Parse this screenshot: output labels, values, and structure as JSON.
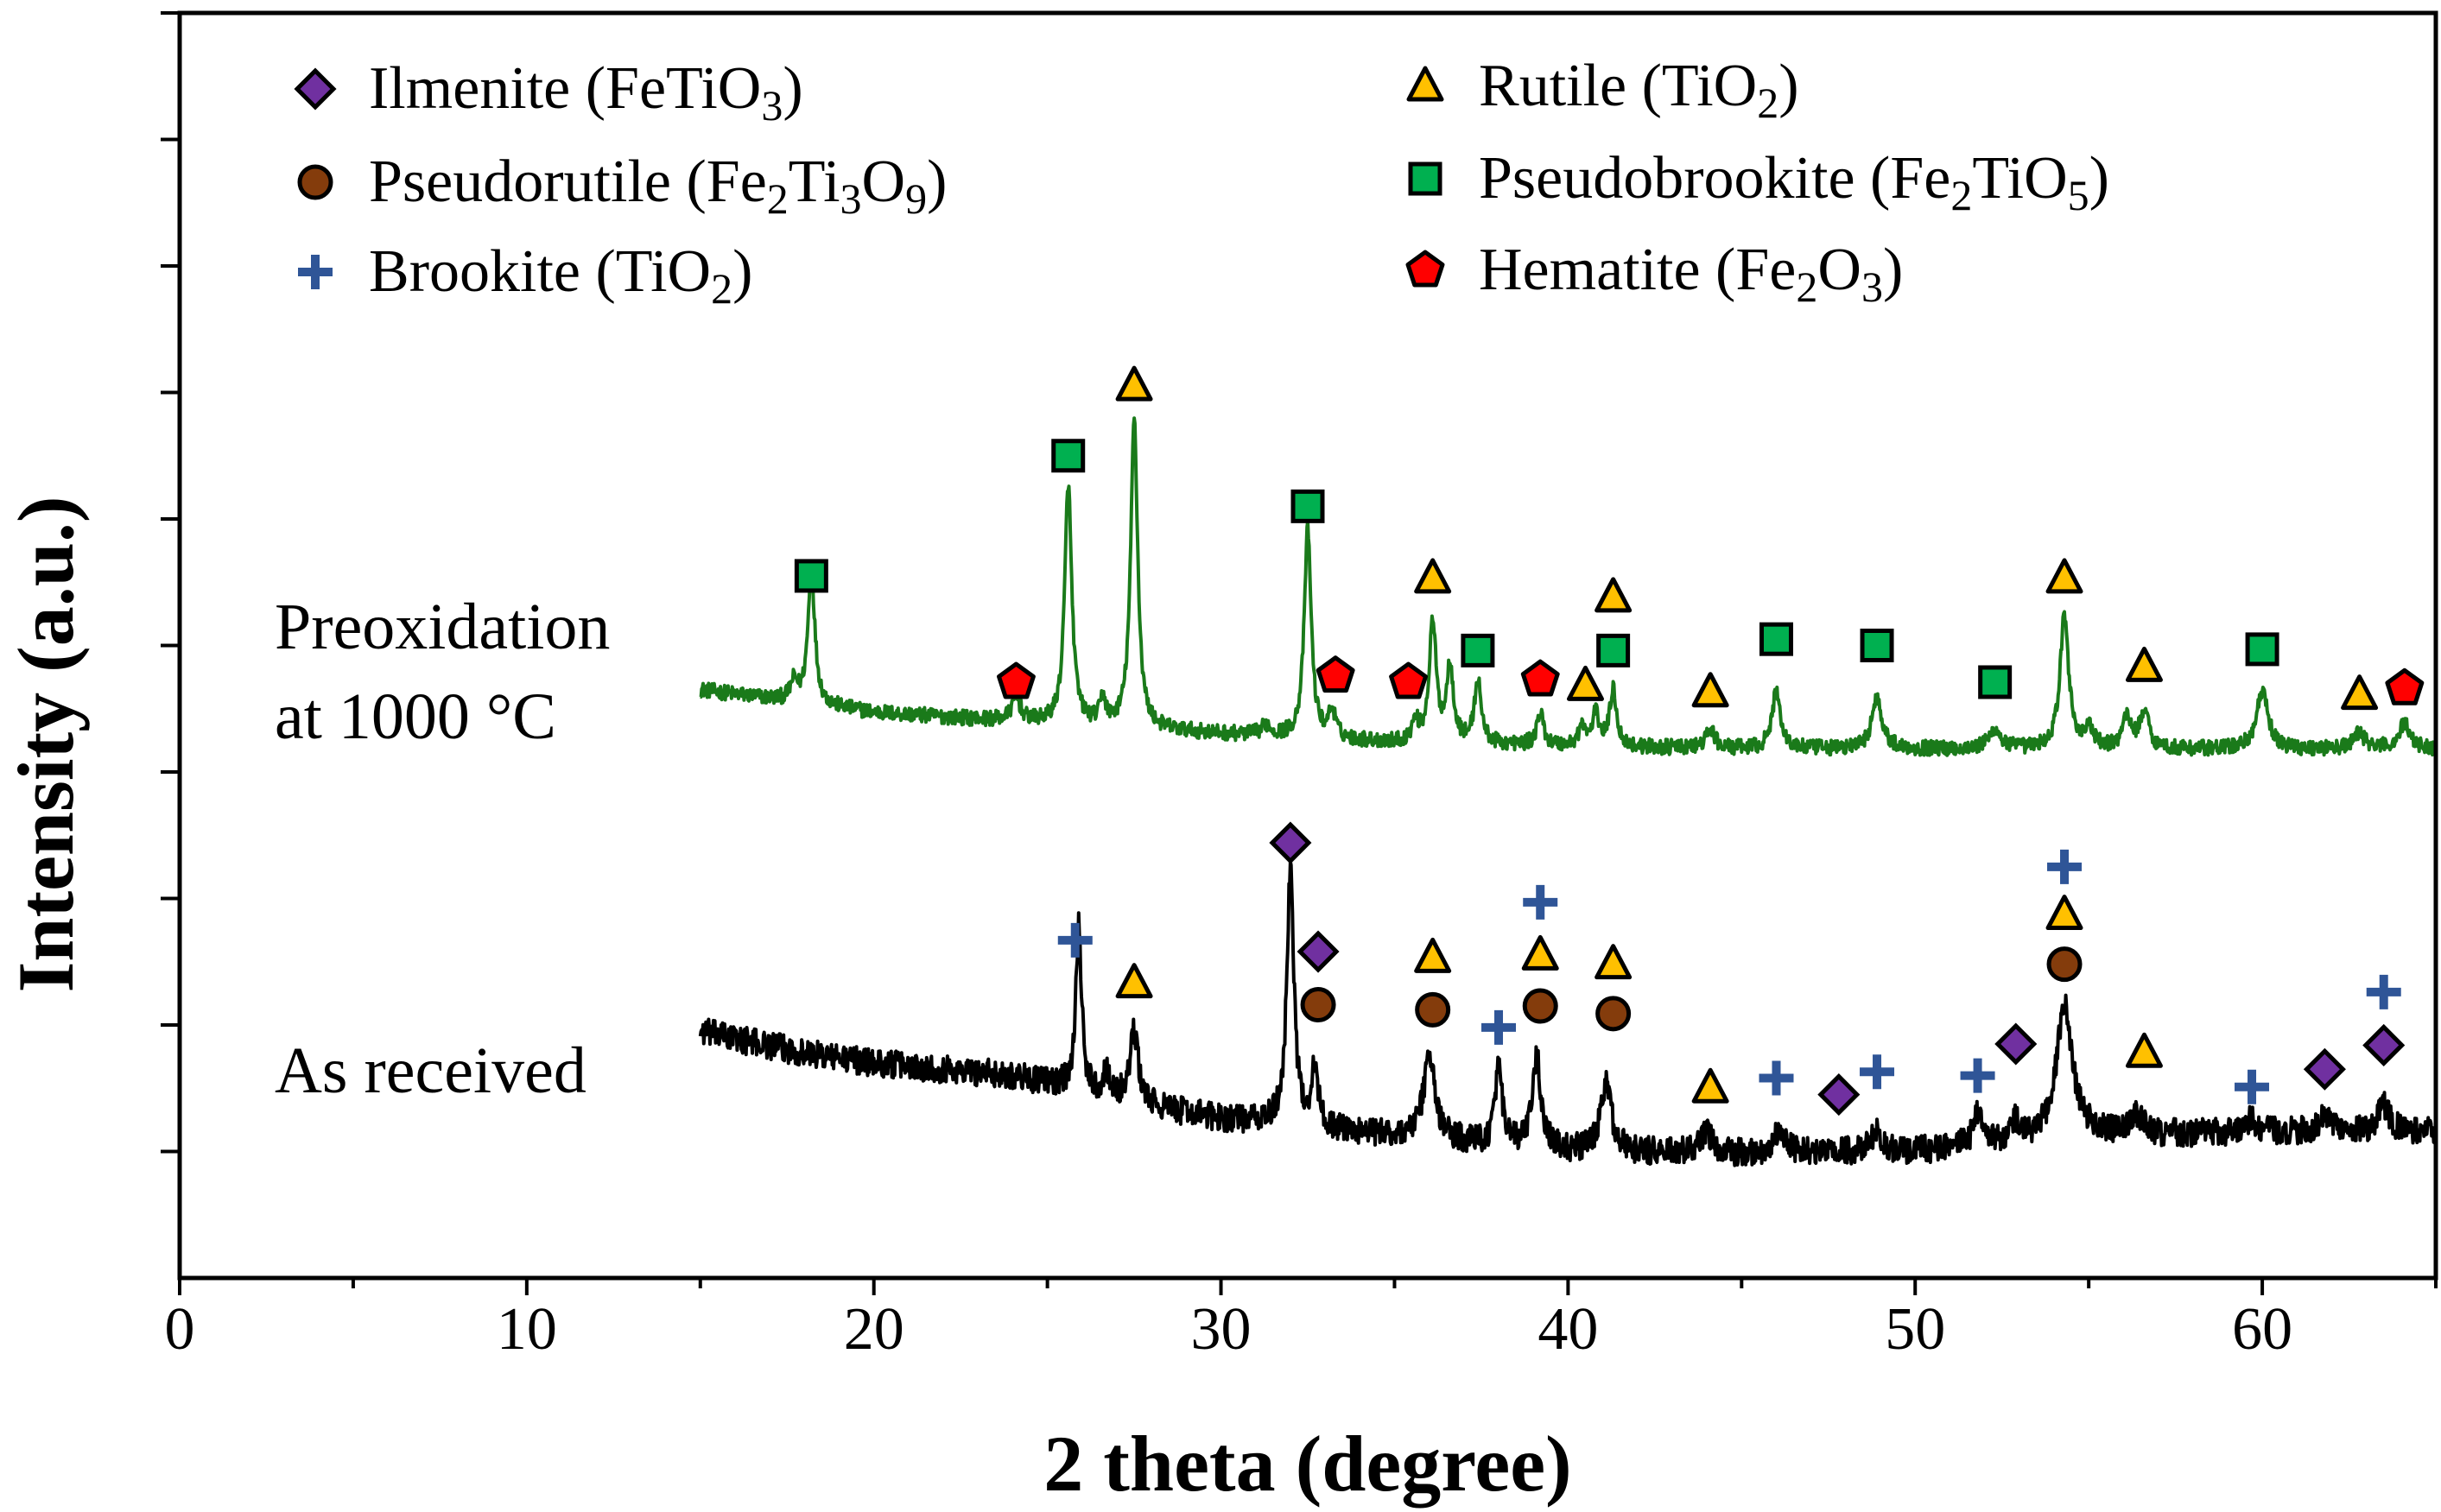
{
  "chart_data": {
    "type": "line",
    "title": "",
    "xlabel": "2 theta (degree)",
    "ylabel": "Intensity (a.u.)",
    "xlim": [
      0,
      65
    ],
    "ylim": [
      0,
      1
    ],
    "xticks": [
      0,
      10,
      20,
      30,
      40,
      50,
      60
    ],
    "xtick_labels": [
      "0",
      "10",
      "20",
      "30",
      "40",
      "50",
      "60"
    ],
    "ytick_count": 10,
    "grid": false,
    "legend_position": "top",
    "legend": [
      {
        "key": "ilmenite",
        "marker": "diamond",
        "color": "#7030a0",
        "name": "Ilmenite (FeTiO",
        "sub": "3",
        "tail": ")"
      },
      {
        "key": "rutile",
        "marker": "triangle",
        "color": "#ffc000",
        "name": "Rutile (TiO",
        "sub": "2",
        "tail": ")"
      },
      {
        "key": "pseudorutile",
        "marker": "circle",
        "color": "#843c0c",
        "name": "Pseudorutile (Fe",
        "sub": "2",
        "mid": "Ti",
        "sub2": "3",
        "mid2": "O",
        "sub3": "9",
        "tail": ")"
      },
      {
        "key": "pseudobrookite",
        "marker": "square",
        "color": "#00b050",
        "name": "Pseudobrookite (Fe",
        "sub": "2",
        "mid": "TiO",
        "sub2": "5",
        "tail": ")"
      },
      {
        "key": "brookite",
        "marker": "plus",
        "color": "#2f5597",
        "name": "Brookite (TiO",
        "sub": "2",
        "tail": ")"
      },
      {
        "key": "hematite",
        "marker": "pentagon",
        "color": "#ff0000",
        "name": "Hematite (Fe",
        "sub": "2",
        "mid": "O",
        "sub2": "3",
        "tail": ")"
      }
    ],
    "series": [
      {
        "name": "Preoxidation at 1000 °C",
        "label_lines": [
          "Preoxidation",
          "at 1000 °C"
        ],
        "color": "#1a7a1a",
        "x_range": [
          15,
          65
        ],
        "baseline": [
          [
            15,
            0.465
          ],
          [
            20,
            0.447
          ],
          [
            25,
            0.438
          ],
          [
            30,
            0.43
          ],
          [
            35,
            0.423
          ],
          [
            40,
            0.42
          ],
          [
            45,
            0.418
          ],
          [
            50,
            0.418
          ],
          [
            55,
            0.418
          ],
          [
            60,
            0.418
          ],
          [
            65,
            0.418
          ]
        ],
        "peaks": [
          [
            17.7,
            0.015,
            0.12
          ],
          [
            18.2,
            0.105,
            0.12
          ],
          [
            24.1,
            0.018,
            0.15
          ],
          [
            25.6,
            0.19,
            0.12
          ],
          [
            26.6,
            0.02,
            0.1
          ],
          [
            27.5,
            0.245,
            0.12
          ],
          [
            31.3,
            0.008,
            0.15
          ],
          [
            32.5,
            0.165,
            0.12
          ],
          [
            33.2,
            0.022,
            0.12
          ],
          [
            35.6,
            0.015,
            0.12
          ],
          [
            36.1,
            0.095,
            0.12
          ],
          [
            36.6,
            0.06,
            0.12
          ],
          [
            37.4,
            0.05,
            0.12
          ],
          [
            39.2,
            0.025,
            0.12
          ],
          [
            40.4,
            0.015,
            0.12
          ],
          [
            40.8,
            0.025,
            0.12
          ],
          [
            41.3,
            0.045,
            0.12
          ],
          [
            44.1,
            0.015,
            0.15
          ],
          [
            46.0,
            0.045,
            0.15
          ],
          [
            48.9,
            0.04,
            0.18
          ],
          [
            52.3,
            0.015,
            0.2
          ],
          [
            54.3,
            0.105,
            0.15
          ],
          [
            55.0,
            0.015,
            0.15
          ],
          [
            56.1,
            0.025,
            0.15
          ],
          [
            56.6,
            0.03,
            0.15
          ],
          [
            60.0,
            0.045,
            0.2
          ],
          [
            62.8,
            0.012,
            0.2
          ],
          [
            64.1,
            0.02,
            0.2
          ]
        ],
        "noise": 0.006
      },
      {
        "name": "As received",
        "label_lines": [
          "As received"
        ],
        "color": "#000000",
        "x_range": [
          15,
          65
        ],
        "baseline": [
          [
            15,
            0.195
          ],
          [
            18,
            0.178
          ],
          [
            20,
            0.17
          ],
          [
            22,
            0.165
          ],
          [
            24,
            0.16
          ],
          [
            26,
            0.148
          ],
          [
            28,
            0.135
          ],
          [
            30,
            0.126
          ],
          [
            32,
            0.12
          ],
          [
            35,
            0.112
          ],
          [
            40,
            0.1
          ],
          [
            45,
            0.098
          ],
          [
            50,
            0.1
          ],
          [
            55,
            0.112
          ],
          [
            60,
            0.115
          ],
          [
            65,
            0.115
          ]
        ],
        "peaks": [
          [
            25.9,
            0.13,
            0.1
          ],
          [
            26.7,
            0.02,
            0.1
          ],
          [
            27.5,
            0.055,
            0.15
          ],
          [
            32.0,
            0.205,
            0.12
          ],
          [
            32.7,
            0.045,
            0.12
          ],
          [
            36.0,
            0.065,
            0.2
          ],
          [
            38.0,
            0.06,
            0.12
          ],
          [
            39.1,
            0.07,
            0.15
          ],
          [
            41.1,
            0.055,
            0.18
          ],
          [
            44.0,
            0.015,
            0.2
          ],
          [
            46.1,
            0.018,
            0.2
          ],
          [
            48.9,
            0.015,
            0.2
          ],
          [
            51.8,
            0.025,
            0.15
          ],
          [
            52.9,
            0.015,
            0.15
          ],
          [
            54.3,
            0.105,
            0.28
          ],
          [
            56.4,
            0.015,
            0.2
          ],
          [
            59.7,
            0.01,
            0.2
          ],
          [
            61.8,
            0.015,
            0.2
          ],
          [
            63.5,
            0.022,
            0.2
          ]
        ],
        "noise": 0.011
      }
    ],
    "peak_markers": [
      {
        "series": "Preoxidation at 1000 °C",
        "phase": "pseudobrookite",
        "x": 18.2,
        "y": 0.555
      },
      {
        "series": "Preoxidation at 1000 °C",
        "phase": "hematite",
        "x": 24.1,
        "y": 0.471
      },
      {
        "series": "Preoxidation at 1000 °C",
        "phase": "pseudobrookite",
        "x": 25.6,
        "y": 0.65
      },
      {
        "series": "Preoxidation at 1000 °C",
        "phase": "rutile",
        "x": 27.5,
        "y": 0.705
      },
      {
        "series": "Preoxidation at 1000 °C",
        "phase": "pseudobrookite",
        "x": 32.5,
        "y": 0.61
      },
      {
        "series": "Preoxidation at 1000 °C",
        "phase": "hematite",
        "x": 33.3,
        "y": 0.476
      },
      {
        "series": "Preoxidation at 1000 °C",
        "phase": "rutile",
        "x": 36.1,
        "y": 0.553
      },
      {
        "series": "Preoxidation at 1000 °C",
        "phase": "hematite",
        "x": 35.4,
        "y": 0.471
      },
      {
        "series": "Preoxidation at 1000 °C",
        "phase": "pseudobrookite",
        "x": 37.4,
        "y": 0.496
      },
      {
        "series": "Preoxidation at 1000 °C",
        "phase": "hematite",
        "x": 39.2,
        "y": 0.473
      },
      {
        "series": "Preoxidation at 1000 °C",
        "phase": "rutile",
        "x": 40.5,
        "y": 0.468
      },
      {
        "series": "Preoxidation at 1000 °C",
        "phase": "pseudobrookite",
        "x": 41.3,
        "y": 0.496
      },
      {
        "series": "Preoxidation at 1000 °C",
        "phase": "rutile",
        "x": 41.3,
        "y": 0.538
      },
      {
        "series": "Preoxidation at 1000 °C",
        "phase": "rutile",
        "x": 44.1,
        "y": 0.463
      },
      {
        "series": "Preoxidation at 1000 °C",
        "phase": "pseudobrookite",
        "x": 46.0,
        "y": 0.505
      },
      {
        "series": "Preoxidation at 1000 °C",
        "phase": "pseudobrookite",
        "x": 48.9,
        "y": 0.5
      },
      {
        "series": "Preoxidation at 1000 °C",
        "phase": "pseudobrookite",
        "x": 52.3,
        "y": 0.471
      },
      {
        "series": "Preoxidation at 1000 °C",
        "phase": "rutile",
        "x": 54.3,
        "y": 0.553
      },
      {
        "series": "Preoxidation at 1000 °C",
        "phase": "rutile",
        "x": 56.6,
        "y": 0.483
      },
      {
        "series": "Preoxidation at 1000 °C",
        "phase": "pseudobrookite",
        "x": 60.0,
        "y": 0.497
      },
      {
        "series": "Preoxidation at 1000 °C",
        "phase": "rutile",
        "x": 62.8,
        "y": 0.461
      },
      {
        "series": "Preoxidation at 1000 °C",
        "phase": "hematite",
        "x": 64.1,
        "y": 0.466
      },
      {
        "series": "As received",
        "phase": "brookite",
        "x": 25.8,
        "y": 0.267
      },
      {
        "series": "As received",
        "phase": "rutile",
        "x": 27.5,
        "y": 0.233
      },
      {
        "series": "As received",
        "phase": "ilmenite",
        "x": 32.0,
        "y": 0.344
      },
      {
        "series": "As received",
        "phase": "ilmenite",
        "x": 32.8,
        "y": 0.258
      },
      {
        "series": "As received",
        "phase": "pseudorutile",
        "x": 32.8,
        "y": 0.216
      },
      {
        "series": "As received",
        "phase": "rutile",
        "x": 36.1,
        "y": 0.253
      },
      {
        "series": "As received",
        "phase": "pseudorutile",
        "x": 36.1,
        "y": 0.212
      },
      {
        "series": "As received",
        "phase": "brookite",
        "x": 38.0,
        "y": 0.198
      },
      {
        "series": "As received",
        "phase": "brookite",
        "x": 39.2,
        "y": 0.297
      },
      {
        "series": "As received",
        "phase": "rutile",
        "x": 39.2,
        "y": 0.255
      },
      {
        "series": "As received",
        "phase": "pseudorutile",
        "x": 39.2,
        "y": 0.215
      },
      {
        "series": "As received",
        "phase": "rutile",
        "x": 41.3,
        "y": 0.248
      },
      {
        "series": "As received",
        "phase": "pseudorutile",
        "x": 41.3,
        "y": 0.209
      },
      {
        "series": "As received",
        "phase": "rutile",
        "x": 44.1,
        "y": 0.15
      },
      {
        "series": "As received",
        "phase": "brookite",
        "x": 46.0,
        "y": 0.158
      },
      {
        "series": "As received",
        "phase": "ilmenite",
        "x": 47.8,
        "y": 0.145
      },
      {
        "series": "As received",
        "phase": "brookite",
        "x": 48.9,
        "y": 0.163
      },
      {
        "series": "As received",
        "phase": "brookite",
        "x": 51.8,
        "y": 0.16
      },
      {
        "series": "As received",
        "phase": "ilmenite",
        "x": 52.9,
        "y": 0.185
      },
      {
        "series": "As received",
        "phase": "brookite",
        "x": 54.3,
        "y": 0.325
      },
      {
        "series": "As received",
        "phase": "rutile",
        "x": 54.3,
        "y": 0.287
      },
      {
        "series": "As received",
        "phase": "pseudorutile",
        "x": 54.3,
        "y": 0.248
      },
      {
        "series": "As received",
        "phase": "rutile",
        "x": 56.6,
        "y": 0.178
      },
      {
        "series": "As received",
        "phase": "brookite",
        "x": 59.7,
        "y": 0.151
      },
      {
        "series": "As received",
        "phase": "ilmenite",
        "x": 61.8,
        "y": 0.165
      },
      {
        "series": "As received",
        "phase": "brookite",
        "x": 63.5,
        "y": 0.226
      },
      {
        "series": "As received",
        "phase": "ilmenite",
        "x": 63.5,
        "y": 0.184
      }
    ]
  }
}
